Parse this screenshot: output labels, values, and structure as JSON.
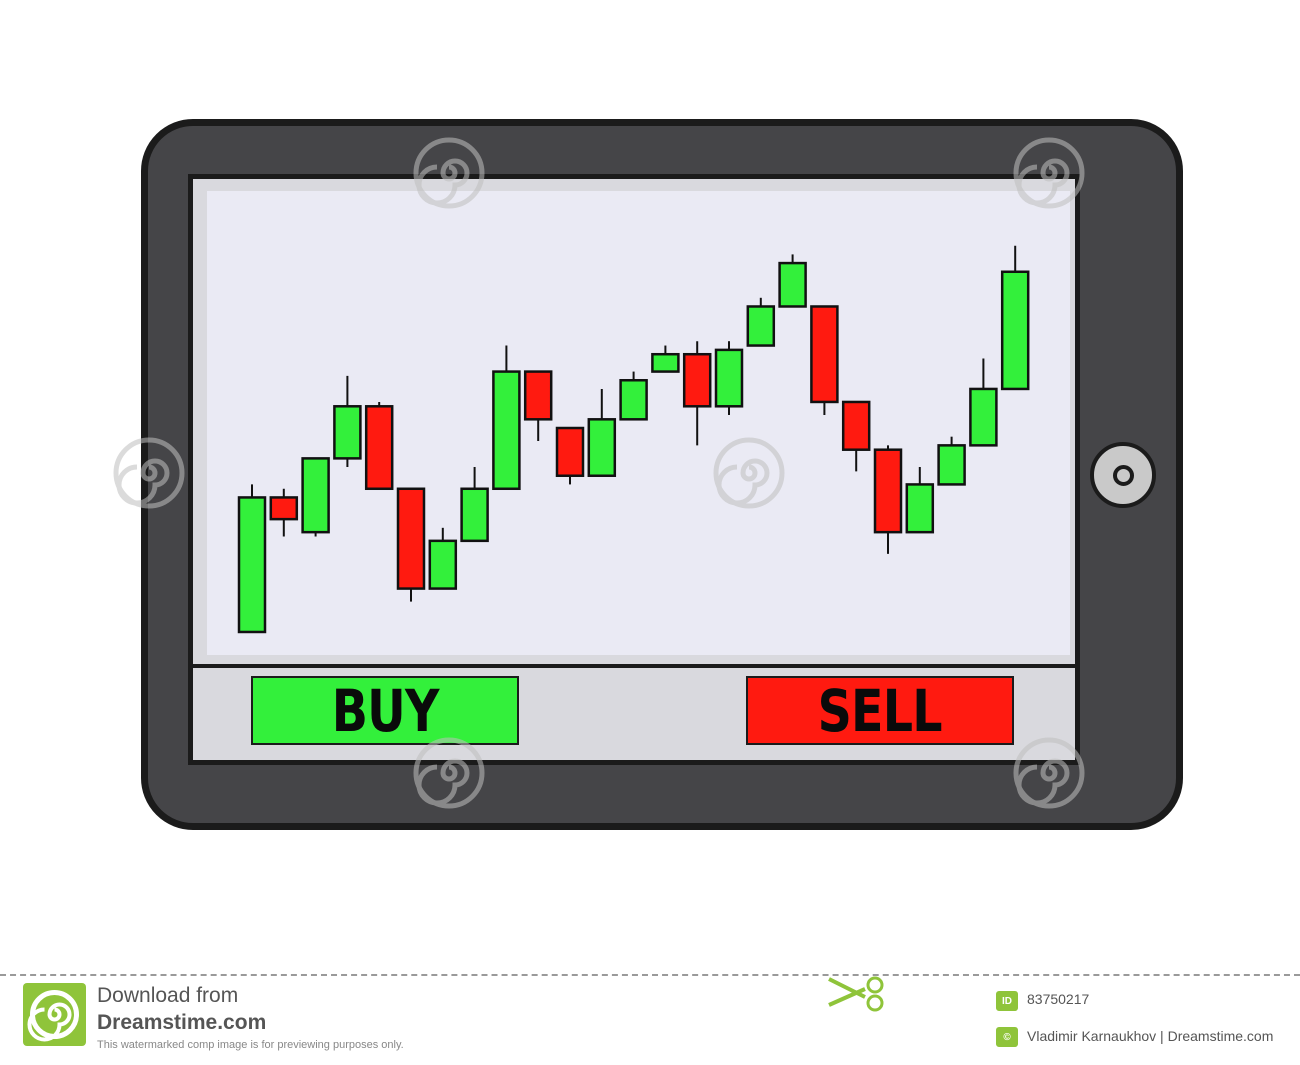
{
  "buttons": {
    "buy_label": "BUY",
    "sell_label": "SELL"
  },
  "colors": {
    "up_candle": "#33f03b",
    "down_candle": "#ff1a10",
    "chart_background": "#eaeaf4",
    "tablet_frame": "#454548",
    "buy_button": "#33f03b",
    "sell_button": "#ff1a10"
  },
  "chart_data": {
    "type": "candlestick",
    "title": "",
    "xlabel": "",
    "ylabel": "",
    "axes_visible": false,
    "grid": false,
    "ylim": [
      0,
      100
    ],
    "candles": [
      {
        "open": 3,
        "close": 34,
        "high": 37,
        "low": 3
      },
      {
        "open": 34,
        "close": 29,
        "high": 36,
        "low": 25
      },
      {
        "open": 26,
        "close": 43,
        "high": 43,
        "low": 25
      },
      {
        "open": 43,
        "close": 55,
        "high": 62,
        "low": 41
      },
      {
        "open": 55,
        "close": 36,
        "high": 56,
        "low": 36
      },
      {
        "open": 36,
        "close": 13,
        "high": 36,
        "low": 10
      },
      {
        "open": 13,
        "close": 24,
        "high": 27,
        "low": 13
      },
      {
        "open": 24,
        "close": 36,
        "high": 41,
        "low": 24
      },
      {
        "open": 36,
        "close": 63,
        "high": 69,
        "low": 36
      },
      {
        "open": 63,
        "close": 52,
        "high": 63,
        "low": 47
      },
      {
        "open": 50,
        "close": 39,
        "high": 50,
        "low": 37
      },
      {
        "open": 39,
        "close": 52,
        "high": 59,
        "low": 39
      },
      {
        "open": 52,
        "close": 61,
        "high": 63,
        "low": 52
      },
      {
        "open": 63,
        "close": 67,
        "high": 69,
        "low": 63
      },
      {
        "open": 67,
        "close": 55,
        "high": 70,
        "low": 46
      },
      {
        "open": 55,
        "close": 68,
        "high": 70,
        "low": 53
      },
      {
        "open": 69,
        "close": 78,
        "high": 80,
        "low": 69
      },
      {
        "open": 78,
        "close": 88,
        "high": 90,
        "low": 78
      },
      {
        "open": 78,
        "close": 56,
        "high": 78,
        "low": 53
      },
      {
        "open": 56,
        "close": 45,
        "high": 56,
        "low": 40
      },
      {
        "open": 45,
        "close": 26,
        "high": 46,
        "low": 21
      },
      {
        "open": 26,
        "close": 37,
        "high": 41,
        "low": 26
      },
      {
        "open": 37,
        "close": 46,
        "high": 48,
        "low": 37
      },
      {
        "open": 46,
        "close": 59,
        "high": 66,
        "low": 46
      },
      {
        "open": 59,
        "close": 86,
        "high": 92,
        "low": 59
      }
    ]
  },
  "footer": {
    "download_line1": "Download from",
    "download_line2": "Dreamstime.com",
    "note": "This watermarked comp image is for previewing purposes only.",
    "id_badge": "ID",
    "id_value": "83750217",
    "copyright_badge": "©",
    "author": "Vladimir Karnaukhov | Dreamstime.com"
  },
  "watermark": {
    "icon": "spiral-watermark-icon"
  }
}
